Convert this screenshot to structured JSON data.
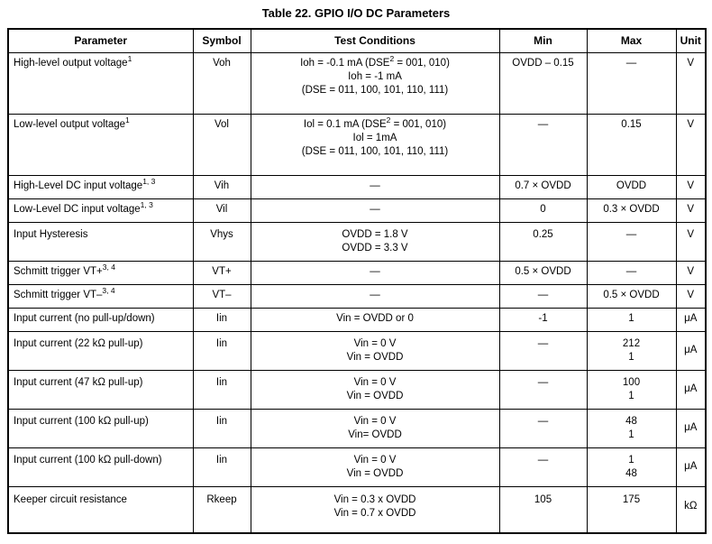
{
  "title": "Table 22. GPIO I/O DC Parameters",
  "colors": {
    "text": "#000000",
    "border": "#000000",
    "background": "#ffffff"
  },
  "table": {
    "columns": [
      "Parameter",
      "Symbol",
      "Test Conditions",
      "Min",
      "Max",
      "Unit"
    ],
    "rows": [
      {
        "parameter": "High-level output voltage^1^",
        "symbol": "Voh",
        "conditions": [
          "Ioh = -0.1 mA (DSE^2^ = 001, 010)",
          "Ioh = -1 mA",
          "(DSE = 011, 100, 101, 110, 111)"
        ],
        "min": "OVDD – 0.15",
        "max": [
          "—"
        ],
        "unit": "V"
      },
      {
        "parameter": "Low-level output voltage^1^",
        "symbol": "Vol",
        "conditions": [
          "Iol = 0.1 mA (DSE^2^ = 001, 010)",
          "Iol = 1mA",
          "(DSE = 011, 100, 101, 110, 111)"
        ],
        "min": "—",
        "max": [
          "0.15"
        ],
        "unit": "V"
      },
      {
        "parameter": "High-Level DC input voltage^1, 3^",
        "symbol": "Vih",
        "conditions": [
          "—"
        ],
        "min": "0.7 × OVDD",
        "max": [
          "OVDD"
        ],
        "unit": "V"
      },
      {
        "parameter": "Low-Level DC input voltage^1, 3^",
        "symbol": "Vil",
        "conditions": [
          "—"
        ],
        "min": "0",
        "max": [
          "0.3 × OVDD"
        ],
        "unit": "V"
      },
      {
        "parameter": "Input Hysteresis",
        "symbol": "Vhys",
        "conditions": [
          "OVDD = 1.8 V",
          "OVDD = 3.3 V"
        ],
        "min": "0.25",
        "max": [
          "—"
        ],
        "unit": "V"
      },
      {
        "parameter": "Schmitt trigger VT+^3, 4^",
        "symbol": "VT+",
        "conditions": [
          "—"
        ],
        "min": "0.5 × OVDD",
        "max": [
          "—"
        ],
        "unit": "V"
      },
      {
        "parameter": "Schmitt trigger VT–^3, 4^",
        "symbol": "VT–",
        "conditions": [
          "—"
        ],
        "min": "—",
        "max": [
          "0.5 × OVDD"
        ],
        "unit": "V"
      },
      {
        "parameter": "Input current (no pull-up/down)",
        "symbol": "Iin",
        "conditions": [
          "Vin = OVDD or 0"
        ],
        "min": "-1",
        "max": [
          "1"
        ],
        "unit": "μA"
      },
      {
        "parameter": "Input current (22 kΩ pull-up)",
        "symbol": "Iin",
        "conditions": [
          "Vin = 0 V",
          "Vin = OVDD"
        ],
        "min": "—",
        "max": [
          "212",
          "1"
        ],
        "unit": "μA"
      },
      {
        "parameter": "Input current (47 kΩ pull-up)",
        "symbol": "Iin",
        "conditions": [
          "Vin = 0 V",
          "Vin = OVDD"
        ],
        "min": "—",
        "max": [
          "100",
          "1"
        ],
        "unit": "μA"
      },
      {
        "parameter": "Input current (100 kΩ pull-up)",
        "symbol": "Iin",
        "conditions": [
          "Vin = 0 V",
          "Vin= OVDD"
        ],
        "min": "—",
        "max": [
          "48",
          "1"
        ],
        "unit": "μA"
      },
      {
        "parameter": "Input current (100 kΩ pull-down)",
        "symbol": "Iin",
        "conditions": [
          "Vin = 0 V",
          "Vin = OVDD"
        ],
        "min": "—",
        "max": [
          "1",
          "48"
        ],
        "unit": "μA"
      },
      {
        "parameter": "Keeper circuit resistance",
        "symbol": "Rkeep",
        "conditions": [
          "Vin = 0.3 x OVDD",
          "Vin = 0.7 x OVDD"
        ],
        "min": "105",
        "max": [
          "175"
        ],
        "unit": "kΩ"
      }
    ]
  }
}
